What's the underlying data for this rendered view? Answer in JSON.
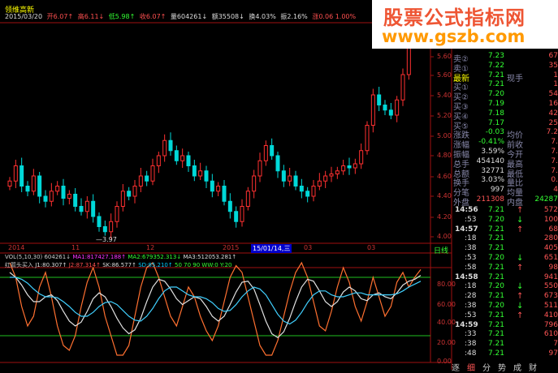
{
  "stock_name": "领维高新",
  "header": {
    "date": "2015/03/20",
    "open": "开6.07↑",
    "high": "高6.11↓",
    "low": "低5.98↑",
    "close": "收6.07↑",
    "volume": "量604261↓",
    "amount": "额35508↓",
    "turnover": "换4.03%",
    "amplitude": "振2.16%",
    "change": "涨0.06 1.00%"
  },
  "price_axis": [
    "5.60",
    "5.60",
    "5.40",
    "5.20",
    "5.00",
    "4.80",
    "4.60",
    "4.40",
    "4.20",
    "4.00"
  ],
  "low_marker": "3.97",
  "date_axis": [
    "2014",
    "11",
    "12",
    "2015",
    "03",
    "03"
  ],
  "cursor_date": "15/01/14,三",
  "period_label": "日线",
  "vol_legend": {
    "name": "VOL(5,10,30) 604261↓",
    "ma1": "MA1:817427.188↑",
    "ma2": "MA2:679352.313↓",
    "ma3": "MA3:512053.281↑"
  },
  "indicator_legend": {
    "name": "红箭头买入",
    "j1": "J1:80.307↑",
    "j2": "J2:87.314↑",
    "sk": "SK:86.577↑",
    "sd": "SD:85.210↑",
    "levels": "50 70 90 WW:0 Y:20"
  },
  "indicator_axis": [
    "80.00",
    "60.00",
    "40.00",
    "20.00",
    "0.00"
  ],
  "watermark": {
    "line1": "股票公式指标网",
    "line2": "www.gszb.com"
  },
  "colors": {
    "up": "#ff3030",
    "down": "#00e0e0",
    "j1": "#ff7030",
    "sk": "#e0e0e0",
    "sd": "#40d0ff",
    "grid": "#a01010",
    "level": "#20c020"
  },
  "order_book": [
    {
      "label": "卖②",
      "price": "7.23",
      "vol": "67"
    },
    {
      "label": "卖①",
      "price": "7.22",
      "vol": "35"
    },
    {
      "label": "最新",
      "price": "7.21",
      "label2": "现手",
      "vol": "1"
    },
    {
      "label": "买①",
      "price": "7.21",
      "vol": "1"
    },
    {
      "label": "买②",
      "price": "7.20",
      "vol": "54"
    },
    {
      "label": "买③",
      "price": "7.19",
      "vol": "16"
    },
    {
      "label": "买④",
      "price": "7.18",
      "vol": "42"
    },
    {
      "label": "买⑤",
      "price": "7.17",
      "vol": "25"
    }
  ],
  "stats": [
    {
      "label": "涨跌",
      "value": "-0.03",
      "label2": "均价",
      "value2": "7.2"
    },
    {
      "label": "涨幅",
      "value": "-0.41%",
      "label2": "前收",
      "value2": "7."
    },
    {
      "label": "振幅",
      "value": "3.59%",
      "label2": "今开",
      "value2": "7."
    },
    {
      "label": "总手",
      "value": "454140",
      "label2": "最高",
      "value2": "7."
    },
    {
      "label": "总额",
      "value": "32771",
      "label2": "最低",
      "value2": "7."
    },
    {
      "label": "换手",
      "value": "3.03%",
      "label2": "量比",
      "value2": "0."
    },
    {
      "label": "分笔",
      "value": "997",
      "label2": "均量",
      "value2": "4"
    },
    {
      "label": "外盘",
      "value": "211308",
      "label2": "内盘",
      "value2": "24287"
    }
  ],
  "ticks": [
    {
      "time": "14:56",
      "price": "7.21",
      "dir": "↑",
      "vol": "572"
    },
    {
      "time": ":53",
      "price": "7.20",
      "dir": "↓",
      "vol": "100"
    },
    {
      "time": "14:57",
      "price": "7.21",
      "dir": "↑",
      "vol": "68"
    },
    {
      "time": ":18",
      "price": "7.21",
      "dir": "",
      "vol": "280"
    },
    {
      "time": ":38",
      "price": "7.21",
      "dir": "",
      "vol": "405"
    },
    {
      "time": ":53",
      "price": "7.20",
      "dir": "↓",
      "vol": "651"
    },
    {
      "time": ":58",
      "price": "7.21",
      "dir": "↑",
      "vol": "98"
    },
    {
      "time": "14:58",
      "price": "7.21",
      "dir": "",
      "vol": "941"
    },
    {
      "time": ":18",
      "price": "7.20",
      "dir": "↓",
      "vol": "550"
    },
    {
      "time": ":28",
      "price": "7.21",
      "dir": "↑",
      "vol": "673"
    },
    {
      "time": ":38",
      "price": "7.20",
      "dir": "↓",
      "vol": "511"
    },
    {
      "time": ":53",
      "price": "7.21",
      "dir": "↑",
      "vol": "410"
    },
    {
      "time": "14:59",
      "price": "7.21",
      "dir": "",
      "vol": "796"
    },
    {
      "time": ":33",
      "price": "7.21",
      "dir": "",
      "vol": "610"
    },
    {
      "time": ":38",
      "price": "7.21",
      "dir": "",
      "vol": "7"
    },
    {
      "time": ":48",
      "price": "7.21",
      "dir": "",
      "vol": "97"
    }
  ],
  "right_tabs": [
    "逐",
    "细",
    "分",
    "势",
    "成",
    "财"
  ],
  "candle_closes": [
    4.55,
    4.7,
    4.5,
    4.45,
    4.6,
    4.4,
    4.35,
    4.45,
    4.5,
    4.38,
    4.42,
    4.3,
    4.25,
    4.35,
    4.2,
    4.1,
    4.05,
    4.15,
    4.3,
    4.45,
    4.4,
    4.5,
    4.6,
    4.55,
    4.7,
    4.8,
    4.95,
    4.85,
    4.75,
    4.8,
    4.7,
    4.6,
    4.65,
    4.55,
    4.45,
    4.5,
    4.35,
    4.25,
    4.15,
    4.3,
    4.45,
    4.6,
    4.75,
    4.9,
    4.8,
    4.65,
    4.55,
    4.6,
    4.5,
    4.45,
    4.4,
    4.5,
    4.55,
    4.6,
    4.62,
    4.65,
    4.7,
    4.68,
    4.72,
    4.85,
    5.1,
    5.4,
    5.3,
    5.25,
    5.2,
    5.35,
    5.6,
    5.9,
    6.05,
    6.1
  ],
  "j1": [
    95,
    80,
    50,
    30,
    40,
    70,
    85,
    60,
    30,
    10,
    5,
    20,
    50,
    75,
    90,
    70,
    40,
    20,
    0,
    0,
    10,
    40,
    70,
    90,
    95,
    80,
    60,
    40,
    30,
    50,
    70,
    60,
    40,
    25,
    15,
    30,
    55,
    80,
    92,
    85,
    60,
    35,
    10,
    0,
    0,
    15,
    40,
    65,
    85,
    95,
    80,
    55,
    30,
    25,
    45,
    70,
    90,
    75,
    50,
    35,
    55,
    80,
    60,
    40,
    50,
    75,
    85,
    70,
    80,
    88
  ],
  "sk": [
    85,
    80,
    72,
    62,
    55,
    55,
    60,
    62,
    56,
    45,
    35,
    30,
    34,
    45,
    58,
    64,
    60,
    50,
    38,
    28,
    22,
    26,
    38,
    55,
    70,
    78,
    76,
    68,
    58,
    52,
    56,
    60,
    58,
    50,
    40,
    35,
    40,
    52,
    65,
    75,
    76,
    68,
    52,
    35,
    22,
    18,
    24,
    38,
    55,
    70,
    78,
    76,
    66,
    55,
    50,
    55,
    65,
    70,
    66,
    58,
    56,
    62,
    64,
    60,
    58,
    64,
    72,
    76,
    78,
    82
  ],
  "sd": [
    80,
    80,
    78,
    74,
    68,
    63,
    60,
    60,
    59,
    55,
    50,
    44,
    40,
    40,
    44,
    50,
    54,
    55,
    52,
    46,
    40,
    36,
    35,
    40,
    48,
    58,
    66,
    70,
    70,
    66,
    62,
    60,
    60,
    58,
    54,
    48,
    45,
    46,
    52,
    60,
    66,
    70,
    68,
    62,
    52,
    42,
    35,
    32,
    36,
    44,
    54,
    62,
    66,
    66,
    62,
    60,
    60,
    62,
    64,
    64,
    62,
    62,
    62,
    62,
    62,
    63,
    66,
    70,
    73,
    76
  ]
}
